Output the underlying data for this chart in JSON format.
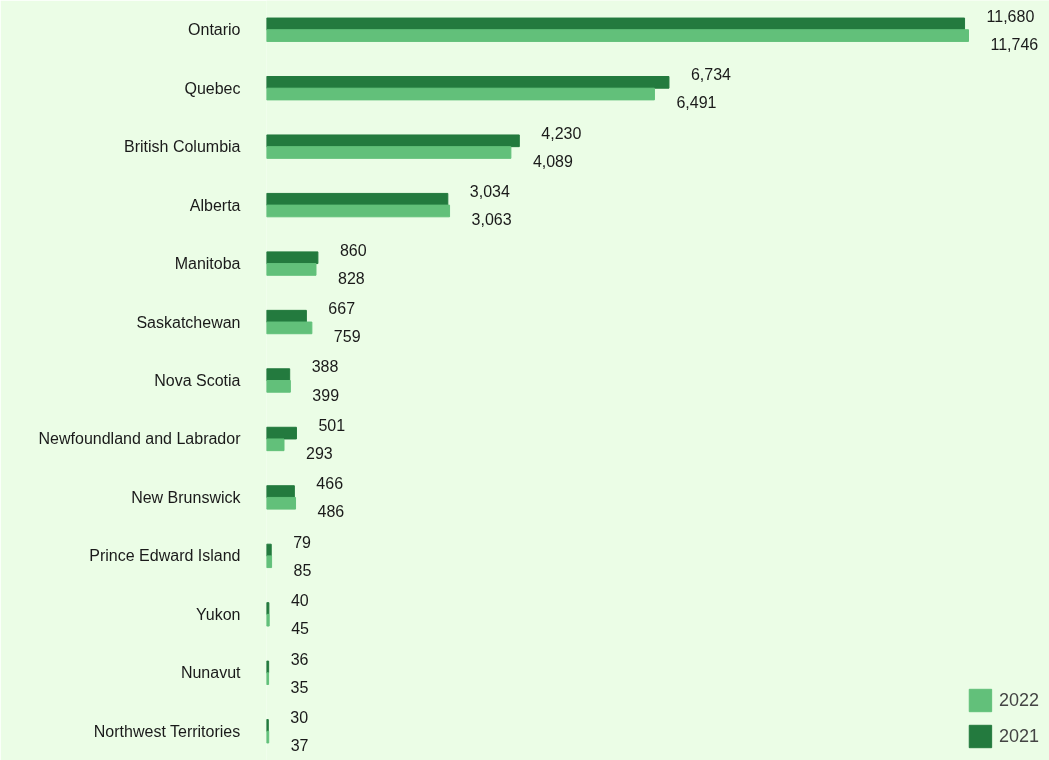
{
  "chart_data": {
    "type": "bar",
    "orientation": "horizontal",
    "categories": [
      "Ontario",
      "Quebec",
      "British Columbia",
      "Alberta",
      "Manitoba",
      "Saskatchewan",
      "Nova Scotia",
      "Newfoundland and Labrador",
      "New Brunswick",
      "Prince Edward Island",
      "Yukon",
      "Nunavut",
      "Northwest Territories"
    ],
    "series": [
      {
        "name": "2021",
        "color": "#237a3e",
        "values": [
          11680,
          6734,
          4230,
          3034,
          860,
          667,
          388,
          501,
          466,
          79,
          40,
          36,
          30
        ],
        "value_labels": [
          "11,680",
          "6,734",
          "4,230",
          "3,034",
          "860",
          "667",
          "388",
          "501",
          "466",
          "79",
          "40",
          "36",
          "30"
        ]
      },
      {
        "name": "2022",
        "color": "#62c07a",
        "values": [
          11746,
          6491,
          4089,
          3063,
          828,
          759,
          399,
          293,
          486,
          85,
          45,
          35,
          37
        ],
        "value_labels": [
          "11,746",
          "6,491",
          "4,089",
          "3,063",
          "828",
          "759",
          "399",
          "293",
          "486",
          "85",
          "45",
          "35",
          "37"
        ]
      }
    ],
    "legend": "bottom right",
    "grid": false,
    "tick_labels": "y"
  }
}
